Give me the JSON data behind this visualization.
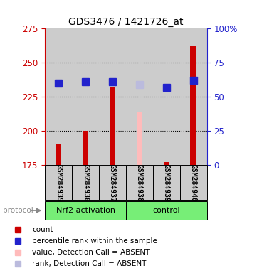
{
  "title": "GDS3476 / 1421726_at",
  "samples": [
    "GSM284935",
    "GSM284936",
    "GSM284937",
    "GSM284938",
    "GSM284939",
    "GSM284940"
  ],
  "group_labels": [
    "Nrf2 activation",
    "control"
  ],
  "bar_bottom": 175,
  "ylim_left": [
    175,
    275
  ],
  "ylim_right": [
    0,
    100
  ],
  "yticks_left": [
    175,
    200,
    225,
    250,
    275
  ],
  "yticks_right": [
    0,
    25,
    50,
    75,
    100
  ],
  "ytick_right_labels": [
    "0",
    "25",
    "50",
    "75",
    "100%"
  ],
  "count_values": [
    191,
    200,
    232,
    null,
    177,
    262
  ],
  "rank_values_left": [
    235,
    236,
    236,
    null,
    232,
    237
  ],
  "absent_value_values": [
    null,
    null,
    null,
    214,
    null,
    null
  ],
  "absent_rank_values": [
    null,
    null,
    null,
    234,
    null,
    null
  ],
  "count_color": "#cc0000",
  "rank_color": "#2222cc",
  "absent_value_color": "#ffbbbb",
  "absent_rank_color": "#bbbbdd",
  "bg_gray": "#cccccc",
  "green_color": "#77ee77",
  "left_axis_color": "#cc0000",
  "right_axis_color": "#2222cc",
  "grid_yticks": [
    200,
    225,
    250
  ],
  "bar_width": 0.22,
  "marker_size": 7
}
